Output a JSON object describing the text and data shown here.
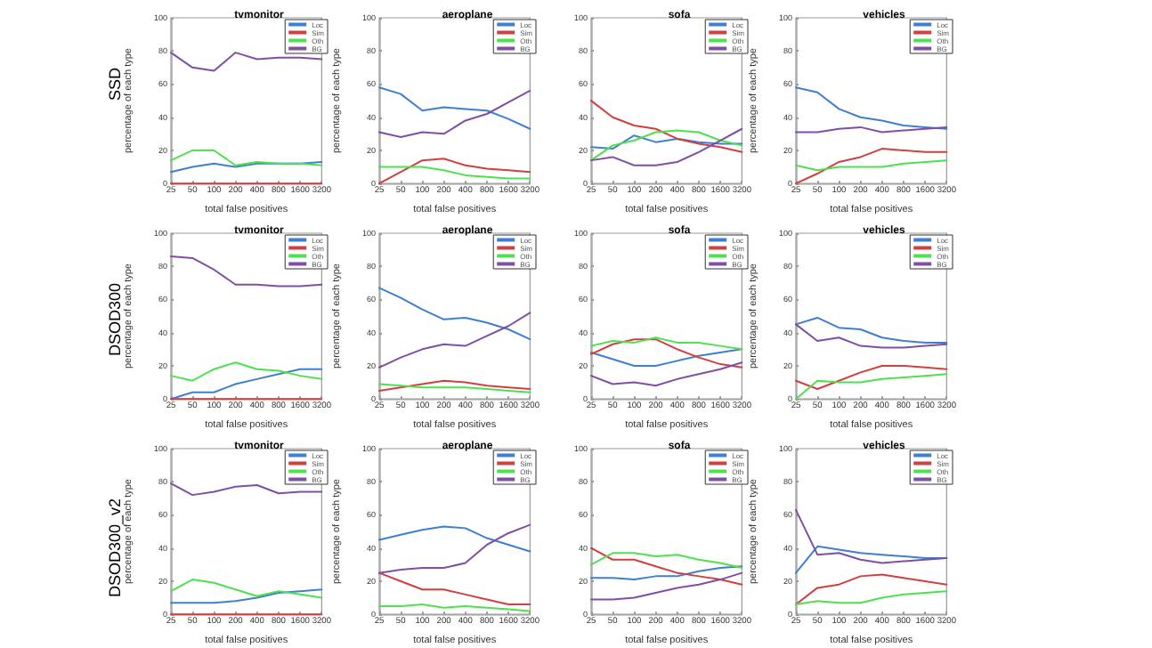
{
  "chart_data": [
    {
      "type": "line",
      "title": "tvmonitor",
      "xlabel": "total false positives",
      "ylabel": "percentage of each type",
      "annotations": [
        "SSD"
      ],
      "categories": [
        "25",
        "50",
        "100",
        "200",
        "400",
        "800",
        "1600",
        "3200"
      ],
      "ylim": [
        0,
        100
      ],
      "yticks": [
        0,
        20,
        40,
        60,
        80,
        100
      ],
      "legend": "top right",
      "marker": "none",
      "line_style": "solid",
      "series": [
        {
          "name": "Loc",
          "color": "#3f7fd0",
          "values": [
            7,
            10,
            12,
            10,
            12,
            12,
            12,
            13
          ]
        },
        {
          "name": "Sim",
          "color": "#d23f3f",
          "values": [
            0,
            0,
            0,
            0,
            0,
            0,
            0,
            0
          ]
        },
        {
          "name": "Oth",
          "color": "#4fe04f",
          "values": [
            14,
            20,
            20,
            11,
            13,
            12,
            12,
            11
          ]
        },
        {
          "name": "BG",
          "color": "#7f4fa5",
          "values": [
            79,
            70,
            68,
            79,
            75,
            76,
            76,
            75
          ]
        }
      ]
    },
    {
      "type": "line",
      "title": "aeroplane",
      "xlabel": "total false positives",
      "ylabel": "percentage of each type",
      "categories": [
        "25",
        "50",
        "100",
        "200",
        "400",
        "800",
        "1600",
        "3200"
      ],
      "ylim": [
        0,
        100
      ],
      "yticks": [
        0,
        20,
        40,
        60,
        80,
        100
      ],
      "legend": "top right",
      "marker": "none",
      "line_style": "solid",
      "series": [
        {
          "name": "Loc",
          "color": "#3f7fd0",
          "values": [
            58,
            54,
            44,
            46,
            45,
            44,
            39,
            33
          ]
        },
        {
          "name": "Sim",
          "color": "#d23f3f",
          "values": [
            0,
            7,
            14,
            15,
            11,
            9,
            8,
            7
          ]
        },
        {
          "name": "Oth",
          "color": "#4fe04f",
          "values": [
            10,
            10,
            10,
            8,
            5,
            4,
            3,
            3
          ]
        },
        {
          "name": "BG",
          "color": "#7f4fa5",
          "values": [
            31,
            28,
            31,
            30,
            38,
            42,
            49,
            56
          ]
        }
      ]
    },
    {
      "type": "line",
      "title": "sofa",
      "xlabel": "total false positives",
      "categories": [
        "25",
        "50",
        "100",
        "200",
        "400",
        "800",
        "1600",
        "3200"
      ],
      "ylim": [
        0,
        100
      ],
      "yticks": [
        0,
        20,
        40,
        60,
        80,
        100
      ],
      "legend": "top right",
      "marker": "none",
      "line_style": "solid",
      "series": [
        {
          "name": "Loc",
          "color": "#3f7fd0",
          "values": [
            22,
            21,
            29,
            25,
            27,
            25,
            24,
            24
          ]
        },
        {
          "name": "Sim",
          "color": "#d23f3f",
          "values": [
            50,
            40,
            35,
            33,
            27,
            24,
            22,
            19
          ]
        },
        {
          "name": "Oth",
          "color": "#4fe04f",
          "values": [
            14,
            23,
            26,
            31,
            32,
            31,
            26,
            23
          ]
        },
        {
          "name": "BG",
          "color": "#7f4fa5",
          "values": [
            14,
            16,
            11,
            11,
            13,
            19,
            26,
            33
          ]
        }
      ]
    },
    {
      "type": "line",
      "title": "vehicles",
      "xlabel": "total false positives",
      "ylabel": "percentage of each type",
      "categories": [
        "25",
        "50",
        "100",
        "200",
        "400",
        "800",
        "1600",
        "3200"
      ],
      "ylim": [
        0,
        100
      ],
      "yticks": [
        0,
        20,
        40,
        60,
        80,
        100
      ],
      "legend": "top right",
      "marker": "none",
      "line_style": "solid",
      "series": [
        {
          "name": "Loc",
          "color": "#3f7fd0",
          "values": [
            58,
            55,
            45,
            40,
            38,
            35,
            34,
            33
          ]
        },
        {
          "name": "Sim",
          "color": "#d23f3f",
          "values": [
            0,
            6,
            13,
            16,
            21,
            20,
            19,
            19
          ]
        },
        {
          "name": "Oth",
          "color": "#4fe04f",
          "values": [
            11,
            8,
            10,
            10,
            10,
            12,
            13,
            14
          ]
        },
        {
          "name": "BG",
          "color": "#7f4fa5",
          "values": [
            31,
            31,
            33,
            34,
            31,
            32,
            33,
            34
          ]
        }
      ]
    },
    {
      "type": "line",
      "title": "tvmonitor",
      "xlabel": "total false positives",
      "ylabel": "percentage of each type",
      "annotations": [
        "DSOD300"
      ],
      "categories": [
        "25",
        "50",
        "100",
        "200",
        "400",
        "800",
        "1600",
        "3200"
      ],
      "ylim": [
        0,
        100
      ],
      "yticks": [
        0,
        20,
        40,
        60,
        80,
        100
      ],
      "legend": "top right",
      "marker": "none",
      "line_style": "solid",
      "series": [
        {
          "name": "Loc",
          "color": "#3f7fd0",
          "values": [
            0,
            4,
            4,
            9,
            12,
            15,
            18,
            18
          ]
        },
        {
          "name": "Sim",
          "color": "#d23f3f",
          "values": [
            0,
            0,
            0,
            0,
            0,
            0,
            0,
            0
          ]
        },
        {
          "name": "Oth",
          "color": "#4fe04f",
          "values": [
            14,
            11,
            18,
            22,
            18,
            17,
            14,
            12
          ]
        },
        {
          "name": "BG",
          "color": "#7f4fa5",
          "values": [
            86,
            85,
            78,
            69,
            69,
            68,
            68,
            69
          ]
        }
      ]
    },
    {
      "type": "line",
      "title": "aeroplane",
      "xlabel": "total false positives",
      "ylabel": "percentage of each type",
      "categories": [
        "25",
        "50",
        "100",
        "200",
        "400",
        "800",
        "1600",
        "3200"
      ],
      "ylim": [
        0,
        100
      ],
      "yticks": [
        0,
        20,
        40,
        60,
        80,
        100
      ],
      "legend": "top right",
      "marker": "none",
      "line_style": "solid",
      "series": [
        {
          "name": "Loc",
          "color": "#3f7fd0",
          "values": [
            67,
            61,
            54,
            48,
            49,
            46,
            42,
            36
          ]
        },
        {
          "name": "Sim",
          "color": "#d23f3f",
          "values": [
            5,
            7,
            9,
            11,
            10,
            8,
            7,
            6
          ]
        },
        {
          "name": "Oth",
          "color": "#4fe04f",
          "values": [
            9,
            8,
            7,
            7,
            7,
            6,
            5,
            4
          ]
        },
        {
          "name": "BG",
          "color": "#7f4fa5",
          "values": [
            19,
            25,
            30,
            33,
            32,
            38,
            44,
            52
          ]
        }
      ]
    },
    {
      "type": "line",
      "title": "sofa",
      "xlabel": "total false positives",
      "categories": [
        "25",
        "50",
        "100",
        "200",
        "400",
        "800",
        "1600",
        "3200"
      ],
      "ylim": [
        0,
        100
      ],
      "yticks": [
        0,
        20,
        40,
        60,
        80,
        100
      ],
      "legend": "top right",
      "marker": "none",
      "line_style": "solid",
      "series": [
        {
          "name": "Loc",
          "color": "#3f7fd0",
          "values": [
            28,
            24,
            20,
            20,
            23,
            26,
            28,
            30
          ]
        },
        {
          "name": "Sim",
          "color": "#d23f3f",
          "values": [
            27,
            33,
            36,
            36,
            30,
            25,
            21,
            19
          ]
        },
        {
          "name": "Oth",
          "color": "#4fe04f",
          "values": [
            32,
            35,
            34,
            37,
            34,
            34,
            32,
            30
          ]
        },
        {
          "name": "BG",
          "color": "#7f4fa5",
          "values": [
            14,
            9,
            10,
            8,
            12,
            15,
            18,
            22
          ]
        }
      ]
    },
    {
      "type": "line",
      "title": "vehicles",
      "xlabel": "total false positives",
      "ylabel": "percentage of each type",
      "categories": [
        "25",
        "50",
        "100",
        "200",
        "400",
        "800",
        "1600",
        "3200"
      ],
      "ylim": [
        0,
        100
      ],
      "yticks": [
        0,
        20,
        40,
        60,
        80,
        100
      ],
      "legend": "top right",
      "marker": "none",
      "line_style": "solid",
      "series": [
        {
          "name": "Loc",
          "color": "#3f7fd0",
          "values": [
            45,
            49,
            43,
            42,
            37,
            35,
            34,
            34
          ]
        },
        {
          "name": "Sim",
          "color": "#d23f3f",
          "values": [
            11,
            6,
            11,
            16,
            20,
            20,
            19,
            18
          ]
        },
        {
          "name": "Oth",
          "color": "#4fe04f",
          "values": [
            0,
            11,
            10,
            10,
            12,
            13,
            14,
            15
          ]
        },
        {
          "name": "BG",
          "color": "#7f4fa5",
          "values": [
            45,
            35,
            37,
            32,
            31,
            31,
            32,
            33
          ]
        }
      ]
    },
    {
      "type": "line",
      "title": "tvmonitor",
      "xlabel": "total false positives",
      "ylabel": "percentage of each type",
      "annotations": [
        "DSOD300_v2"
      ],
      "categories": [
        "25",
        "50",
        "100",
        "200",
        "400",
        "800",
        "1600",
        "3200"
      ],
      "ylim": [
        0,
        100
      ],
      "yticks": [
        0,
        20,
        40,
        60,
        80,
        100
      ],
      "legend": "top right",
      "marker": "none",
      "line_style": "solid",
      "series": [
        {
          "name": "Loc",
          "color": "#3f7fd0",
          "values": [
            7,
            7,
            7,
            8,
            10,
            13,
            14,
            15
          ]
        },
        {
          "name": "Sim",
          "color": "#d23f3f",
          "values": [
            0,
            0,
            0,
            0,
            0,
            0,
            0,
            0
          ]
        },
        {
          "name": "Oth",
          "color": "#4fe04f",
          "values": [
            14,
            21,
            19,
            15,
            11,
            14,
            12,
            10
          ]
        },
        {
          "name": "BG",
          "color": "#7f4fa5",
          "values": [
            79,
            72,
            74,
            77,
            78,
            73,
            74,
            74
          ]
        }
      ]
    },
    {
      "type": "line",
      "title": "aeroplane",
      "xlabel": "total false positives",
      "ylabel": "percentage of each type",
      "categories": [
        "25",
        "50",
        "100",
        "200",
        "400",
        "800",
        "1600",
        "3200"
      ],
      "ylim": [
        0,
        100
      ],
      "yticks": [
        0,
        20,
        40,
        60,
        80,
        100
      ],
      "legend": "top right",
      "marker": "none",
      "line_style": "solid",
      "series": [
        {
          "name": "Loc",
          "color": "#3f7fd0",
          "values": [
            45,
            48,
            51,
            53,
            52,
            46,
            42,
            38
          ]
        },
        {
          "name": "Sim",
          "color": "#d23f3f",
          "values": [
            25,
            20,
            15,
            15,
            12,
            9,
            6,
            6
          ]
        },
        {
          "name": "Oth",
          "color": "#4fe04f",
          "values": [
            5,
            5,
            6,
            4,
            5,
            4,
            3,
            2
          ]
        },
        {
          "name": "BG",
          "color": "#7f4fa5",
          "values": [
            25,
            27,
            28,
            28,
            31,
            42,
            49,
            54
          ]
        }
      ]
    },
    {
      "type": "line",
      "title": "sofa",
      "xlabel": "total false positives",
      "categories": [
        "25",
        "50",
        "100",
        "200",
        "400",
        "800",
        "1600",
        "3200"
      ],
      "ylim": [
        0,
        100
      ],
      "yticks": [
        0,
        20,
        40,
        60,
        80,
        100
      ],
      "legend": "top right",
      "marker": "none",
      "line_style": "solid",
      "series": [
        {
          "name": "Loc",
          "color": "#3f7fd0",
          "values": [
            22,
            22,
            21,
            23,
            23,
            26,
            28,
            29
          ]
        },
        {
          "name": "Sim",
          "color": "#d23f3f",
          "values": [
            40,
            33,
            33,
            29,
            25,
            23,
            21,
            18
          ]
        },
        {
          "name": "Oth",
          "color": "#4fe04f",
          "values": [
            30,
            37,
            37,
            35,
            36,
            33,
            31,
            28
          ]
        },
        {
          "name": "BG",
          "color": "#7f4fa5",
          "values": [
            9,
            9,
            10,
            13,
            16,
            18,
            21,
            25
          ]
        }
      ]
    },
    {
      "type": "line",
      "title": "vehicles",
      "xlabel": "total false positives",
      "ylabel": "percentage of each type",
      "categories": [
        "25",
        "50",
        "100",
        "200",
        "400",
        "800",
        "1600",
        "3200"
      ],
      "ylim": [
        0,
        100
      ],
      "yticks": [
        0,
        20,
        40,
        60,
        80,
        100
      ],
      "legend": "top right",
      "marker": "none",
      "line_style": "solid",
      "series": [
        {
          "name": "Loc",
          "color": "#3f7fd0",
          "values": [
            25,
            41,
            39,
            37,
            36,
            35,
            34,
            34
          ]
        },
        {
          "name": "Sim",
          "color": "#d23f3f",
          "values": [
            6,
            16,
            18,
            23,
            24,
            22,
            20,
            18
          ]
        },
        {
          "name": "Oth",
          "color": "#4fe04f",
          "values": [
            6,
            8,
            7,
            7,
            10,
            12,
            13,
            14
          ]
        },
        {
          "name": "BG",
          "color": "#7f4fa5",
          "values": [
            63,
            36,
            37,
            33,
            31,
            32,
            33,
            34
          ]
        }
      ]
    }
  ]
}
